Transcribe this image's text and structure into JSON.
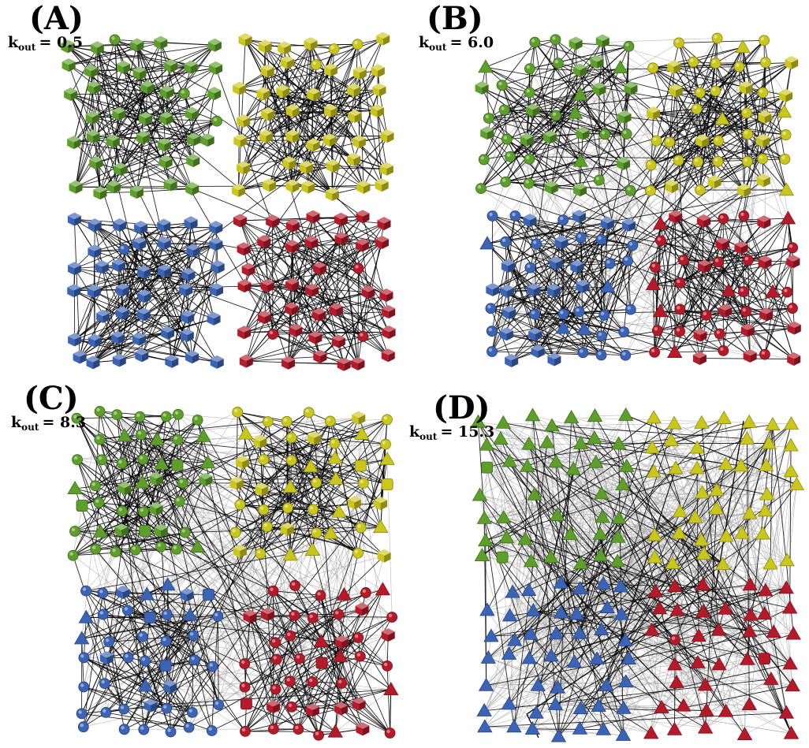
{
  "colors": {
    "green": "#5e9e2a",
    "yellow": "#c9c71b",
    "blue": "#3b64b6",
    "red": "#b51a2b",
    "intra_edge": "#000000",
    "inter_edge": "#9a9a9a"
  },
  "panels": [
    {
      "id": "A",
      "letter": "(A)",
      "k_symbol": "k",
      "k_sub": "out",
      "k_value": "= 0.5",
      "k_out": 0.5
    },
    {
      "id": "B",
      "letter": "(B)",
      "k_symbol": "k",
      "k_sub": "out",
      "k_value": "= 6.0",
      "k_out": 6.0
    },
    {
      "id": "C",
      "letter": "(C)",
      "k_symbol": "k",
      "k_sub": "out",
      "k_value": "= 8.3",
      "k_out": 8.3
    },
    {
      "id": "D",
      "letter": "(D)",
      "k_symbol": "k",
      "k_sub": "out",
      "k_value": "= 15.3",
      "k_out": 15.3
    }
  ],
  "communities": [
    "green",
    "yellow",
    "blue",
    "red"
  ],
  "node_shapes": [
    "cube",
    "circle",
    "triangle",
    "square"
  ]
}
